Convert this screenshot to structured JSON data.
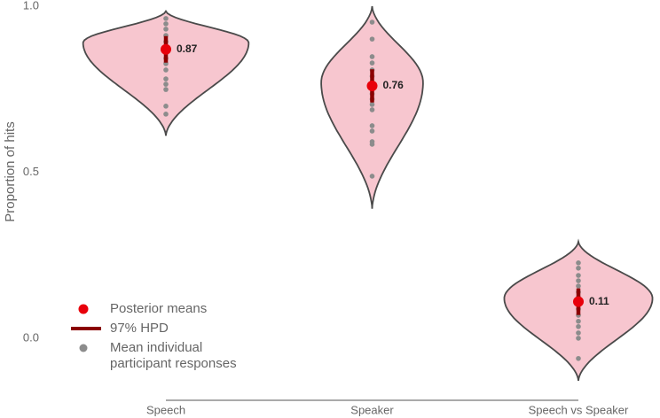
{
  "chart_data": {
    "type": "violin",
    "y_label": "Proportion of hits",
    "categories": [
      "Speech",
      "Speaker",
      "Speech vs Speaker"
    ],
    "means": [
      0.87,
      0.76,
      0.11
    ],
    "mean_labels": [
      "0.87",
      "0.76",
      "0.11"
    ],
    "hpd": [
      [
        0.83,
        0.91
      ],
      [
        0.71,
        0.81
      ],
      [
        0.07,
        0.15
      ]
    ],
    "violin_range": [
      [
        0.61,
        0.985
      ],
      [
        0.39,
        1.0
      ],
      [
        -0.128,
        0.291
      ]
    ],
    "violin_peak": [
      0.89,
      0.77,
      0.12
    ],
    "points": [
      [
        0.963,
        0.947,
        0.931,
        0.912,
        0.893,
        0.877,
        0.859,
        0.843,
        0.827,
        0.808,
        0.781,
        0.765,
        0.749,
        0.699,
        0.675
      ],
      [
        0.952,
        0.901,
        0.848,
        0.829,
        0.808,
        0.789,
        0.771,
        0.755,
        0.736,
        0.72,
        0.704,
        0.688,
        0.64,
        0.624,
        0.592,
        0.584,
        0.488
      ],
      [
        0.227,
        0.211,
        0.189,
        0.173,
        0.157,
        0.139,
        0.123,
        0.104,
        0.088,
        0.069,
        0.051,
        0.035,
        0.016,
        0.0,
        -0.061
      ]
    ],
    "ylim": [
      -0.187,
      1.0
    ],
    "yticks": [
      {
        "value": 0,
        "label": "0.0"
      },
      {
        "value": 0.5,
        "label": "0.5"
      },
      {
        "value": 1,
        "label": "1.0"
      }
    ],
    "legend": [
      "Posterior means",
      "97% HPD",
      "Mean individual participant responses"
    ],
    "colors": {
      "violin": "#f7c6cf",
      "outline": "#4a4a4a",
      "mean": "#e8000b",
      "hpd": "#8b0000",
      "points": "#8c8c8c"
    }
  }
}
